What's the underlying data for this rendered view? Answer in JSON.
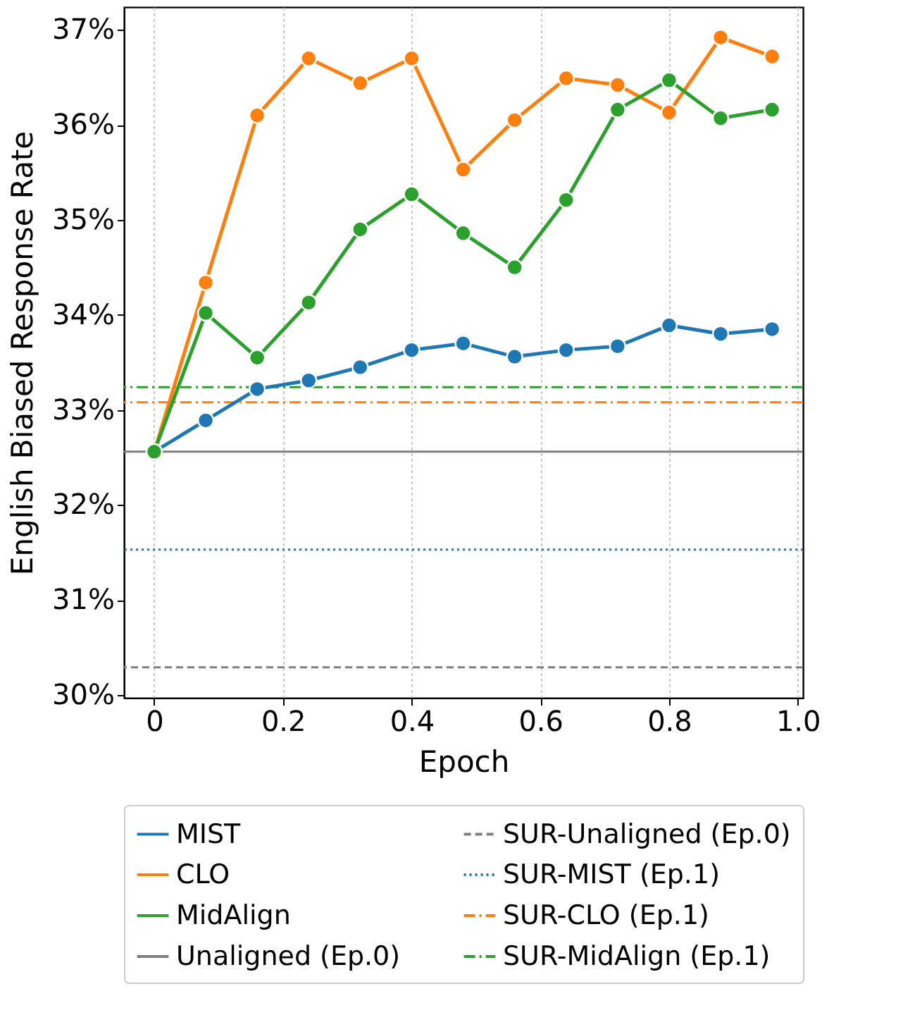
{
  "chart_data": {
    "type": "line",
    "xlabel": "Epoch",
    "ylabel": "English Biased Response Rate",
    "x": [
      0,
      0.08,
      0.16,
      0.24,
      0.32,
      0.4,
      0.48,
      0.56,
      0.64,
      0.72,
      0.8,
      0.88,
      0.96
    ],
    "series": [
      {
        "name": "MIST",
        "color": "#1f77b4",
        "values": [
          32.56,
          32.89,
          33.22,
          33.31,
          33.45,
          33.63,
          33.7,
          33.56,
          33.63,
          33.67,
          33.89,
          33.8,
          33.85
        ]
      },
      {
        "name": "CLO",
        "color": "#ff7f0e",
        "values": [
          32.56,
          34.34,
          36.1,
          36.7,
          36.44,
          36.7,
          35.53,
          36.05,
          36.49,
          36.42,
          36.13,
          36.92,
          36.72
        ]
      },
      {
        "name": "MidAlign",
        "color": "#2ca02c",
        "values": [
          32.56,
          34.02,
          33.55,
          34.13,
          34.9,
          35.27,
          34.86,
          34.5,
          35.21,
          36.16,
          36.47,
          36.07,
          36.16
        ]
      }
    ],
    "ref_lines": [
      {
        "axis": "y",
        "value": 32.56,
        "label": "Unaligned (Ep.0)",
        "color": "#7f7f7f",
        "line_style": "solid"
      },
      {
        "axis": "y",
        "value": 30.29,
        "label": "SUR-Unaligned (Ep.0)",
        "color": "#7f7f7f",
        "line_style": "dashed"
      },
      {
        "axis": "y",
        "value": 31.53,
        "label": "SUR-MIST (Ep.1)",
        "color": "#1f77b4",
        "line_style": "dotted"
      },
      {
        "axis": "y",
        "value": 33.08,
        "label": "SUR-CLO (Ep.1)",
        "color": "#ff7f0e",
        "line_style": "dashdot"
      },
      {
        "axis": "y",
        "value": 33.24,
        "label": "SUR-MidAlign (Ep.1)",
        "color": "#2ca02c",
        "line_style": "dashdot"
      }
    ],
    "xlim": [
      -0.047,
      1.008
    ],
    "ylim": [
      29.97,
      37.24
    ],
    "xticks": [
      0,
      0.2,
      0.4,
      0.6,
      0.8,
      {
        "value": 1,
        "label": "1.0"
      }
    ],
    "yticks": [
      {
        "value": 30,
        "label": "30%"
      },
      {
        "value": 31,
        "label": "31%"
      },
      {
        "value": 32,
        "label": "32%"
      },
      {
        "value": 33,
        "label": "33%"
      },
      {
        "value": 34,
        "label": "34%"
      },
      {
        "value": 35,
        "label": "35%"
      },
      {
        "value": 36,
        "label": "36%"
      },
      {
        "value": 37,
        "label": "37%"
      }
    ],
    "grid": "x",
    "legend": "bottom",
    "marker": "circle",
    "line_style": "solid"
  }
}
